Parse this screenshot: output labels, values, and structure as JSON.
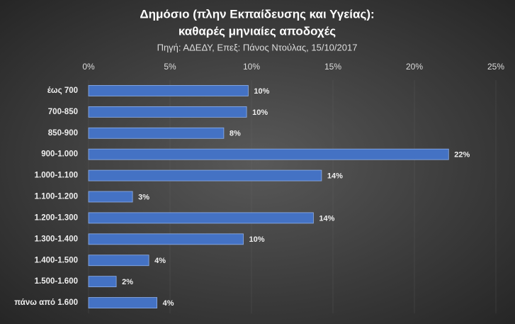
{
  "chart_data": {
    "type": "hbar",
    "title": [
      "Δημόσιο (πλην Εκπαίδευσης και Υγείας):",
      "καθαρές μηνιαίες αποδοχές"
    ],
    "subtitle": "Πηγή: ΑΔΕΔΥ, Επεξ: Πάνος Ντούλας, 15/10/2017",
    "categories": [
      "έως 700",
      "700-850",
      "850-900",
      "900-1.000",
      "1.000-1.100",
      "1.100-1.200",
      "1.200-1.300",
      "1.300-1.400",
      "1.400-1.500",
      "1.500-1.600",
      "πάνω από 1.600"
    ],
    "values": [
      9.8,
      9.7,
      8.3,
      22.1,
      14.3,
      2.7,
      13.8,
      9.5,
      3.7,
      1.7,
      4.2
    ],
    "value_labels": [
      "10%",
      "10%",
      "8%",
      "22%",
      "14%",
      "3%",
      "14%",
      "10%",
      "4%",
      "2%",
      "4%"
    ],
    "color": "#4472c4",
    "xlim": [
      0,
      25
    ],
    "xticks": [
      {
        "value": 0,
        "label": "0%"
      },
      {
        "value": 5,
        "label": "5%"
      },
      {
        "value": 10,
        "label": "10%"
      },
      {
        "value": 15,
        "label": "15%"
      },
      {
        "value": 20,
        "label": "20%"
      },
      {
        "value": 25,
        "label": "25%"
      }
    ],
    "grid": true
  }
}
